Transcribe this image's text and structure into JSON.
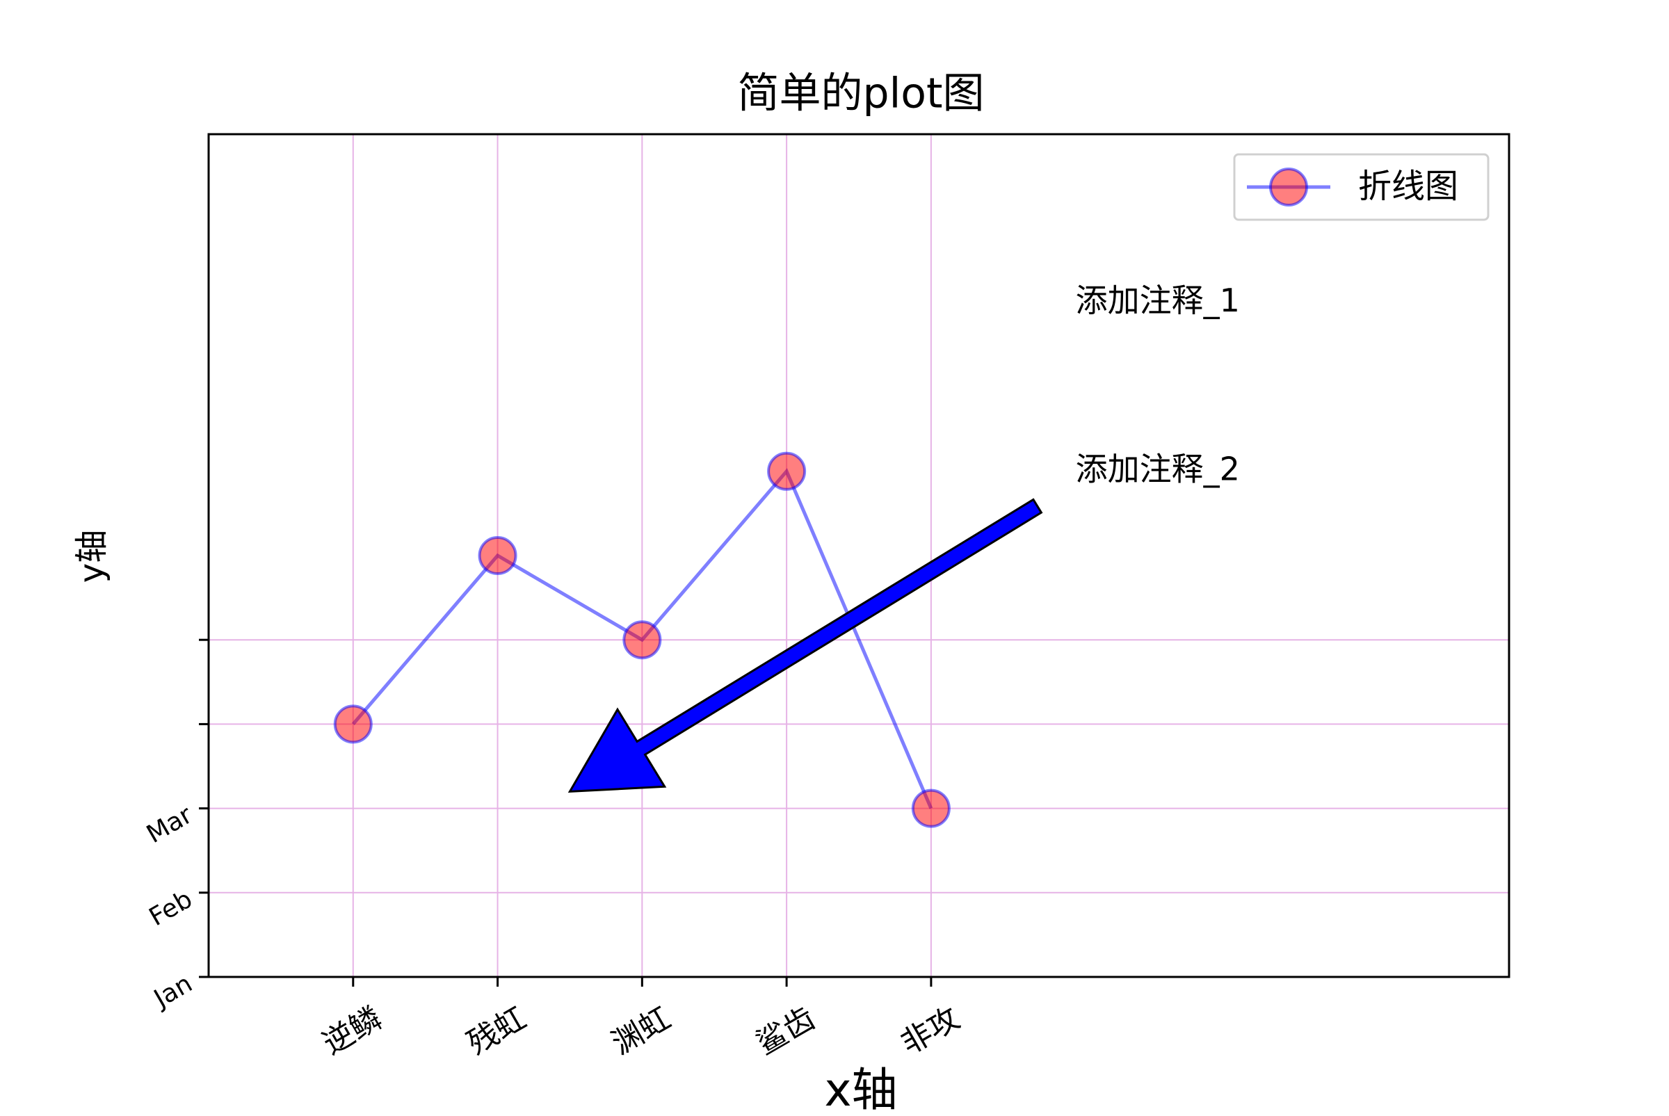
{
  "chart_data": {
    "type": "line",
    "title": "简单的plot图",
    "xlabel": "x轴",
    "ylabel": "y轴",
    "categories": [
      "逆鳞",
      "残虹",
      "渊虹",
      "鲨齿",
      "非攻"
    ],
    "x": [
      0,
      1,
      2,
      3,
      4
    ],
    "xlim": [
      -1,
      8
    ],
    "ylim": [
      0,
      10
    ],
    "yticks": [
      0,
      1,
      2,
      3,
      4
    ],
    "ytick_labels": [
      "Jan",
      "Feb",
      "Mar",
      "",
      ""
    ],
    "series": [
      {
        "name": "折线图",
        "values": [
          3,
          5,
          4,
          6,
          2
        ],
        "line_color": "#0000ff",
        "marker_color": "#ff0000",
        "alpha": 0.5,
        "marker": "circle"
      }
    ],
    "grid": true,
    "grid_color": "#e6b3e6",
    "legend": {
      "position": "upper right",
      "entries": [
        "折线图"
      ]
    },
    "annotations": [
      {
        "text": "添加注释_1",
        "x": 5,
        "y": 8
      },
      {
        "text": "添加注释_2",
        "x": 5,
        "y": 6,
        "arrow_to": [
          1.5,
          2.2
        ],
        "arrow_color": "#0000ff"
      }
    ]
  }
}
